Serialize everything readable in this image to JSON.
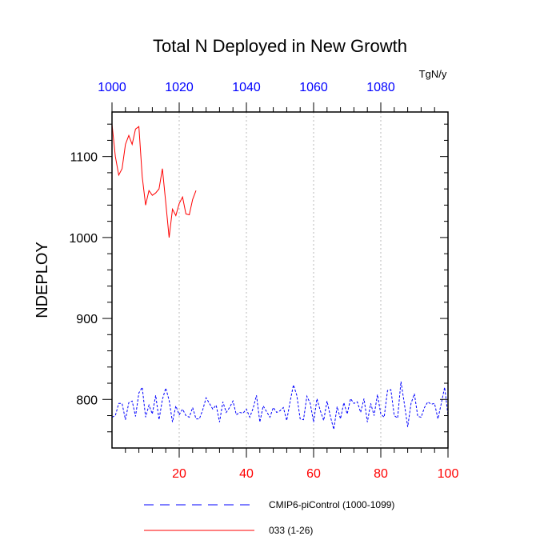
{
  "chart_data": {
    "type": "line",
    "title": "Total N Deployed in New Growth",
    "units": "TgN/y",
    "ylabel": "NDEPLOY",
    "xlabel": "",
    "xlim": [
      0,
      100
    ],
    "ylim": [
      740,
      1155
    ],
    "y_ticks": [
      800,
      900,
      1000,
      1100
    ],
    "y_tick_labels": [
      "800",
      "900",
      "1000",
      "1100"
    ],
    "x_ticks": [
      20,
      40,
      60,
      80,
      100
    ],
    "x_tick_labels": [
      "20",
      "40",
      "60",
      "80",
      "100"
    ],
    "x_tick_color": "#ff0000",
    "top_ticks": [
      0,
      20,
      40,
      60,
      80
    ],
    "top_tick_labels": [
      "1000",
      "1020",
      "1040",
      "1060",
      "1080"
    ],
    "top_tick_color": "#0000ff",
    "gridlines_x": [
      20,
      40,
      60,
      80
    ],
    "grid": true,
    "legend_position": "bottom",
    "series": [
      {
        "name": "CMIP6-piControl (1000-1099)",
        "color": "#0000ff",
        "style": "dashed",
        "x": [
          0,
          1,
          2,
          3,
          4,
          5,
          6,
          7,
          8,
          9,
          10,
          11,
          12,
          13,
          14,
          15,
          16,
          17,
          18,
          19,
          20,
          21,
          22,
          23,
          24,
          25,
          26,
          27,
          28,
          29,
          30,
          31,
          32,
          33,
          34,
          35,
          36,
          37,
          38,
          39,
          40,
          41,
          42,
          43,
          44,
          45,
          46,
          47,
          48,
          49,
          50,
          51,
          52,
          53,
          54,
          55,
          56,
          57,
          58,
          59,
          60,
          61,
          62,
          63,
          64,
          65,
          66,
          67,
          68,
          69,
          70,
          71,
          72,
          73,
          74,
          75,
          76,
          77,
          78,
          79,
          80,
          81,
          82,
          83,
          84,
          85,
          86,
          87,
          88,
          89,
          90,
          91,
          92,
          93,
          94,
          95,
          96,
          97,
          98,
          99,
          100
        ],
        "y": [
          778,
          780,
          795,
          795,
          775,
          796,
          798,
          779,
          808,
          815,
          778,
          793,
          782,
          805,
          775,
          800,
          814,
          799,
          772,
          792,
          781,
          788,
          780,
          778,
          790,
          776,
          776,
          787,
          802,
          795,
          788,
          793,
          772,
          797,
          784,
          790,
          798,
          781,
          784,
          783,
          788,
          778,
          789,
          805,
          772,
          792,
          785,
          778,
          790,
          784,
          786,
          790,
          774,
          797,
          818,
          805,
          776,
          775,
          804,
          795,
          772,
          801,
          786,
          774,
          798,
          779,
          763,
          791,
          776,
          796,
          782,
          801,
          795,
          797,
          784,
          801,
          772,
          795,
          780,
          806,
          782,
          778,
          811,
          812,
          780,
          777,
          822,
          795,
          766,
          795,
          807,
          779,
          778,
          790,
          797,
          794,
          795,
          776,
          795,
          815,
          780
        ]
      },
      {
        "name": "033 (1-26)",
        "color": "#ff0000",
        "style": "solid",
        "x": [
          0,
          1,
          2,
          3,
          4,
          5,
          6,
          7,
          8,
          9,
          10,
          11,
          12,
          13,
          14,
          15,
          16,
          17,
          18,
          19,
          20,
          21,
          22,
          23,
          24,
          25
        ],
        "y": [
          1140,
          1100,
          1077,
          1085,
          1115,
          1126,
          1115,
          1134,
          1137,
          1075,
          1040,
          1058,
          1052,
          1055,
          1060,
          1085,
          1043,
          1000,
          1035,
          1027,
          1042,
          1050,
          1029,
          1028,
          1047,
          1058
        ]
      }
    ]
  }
}
